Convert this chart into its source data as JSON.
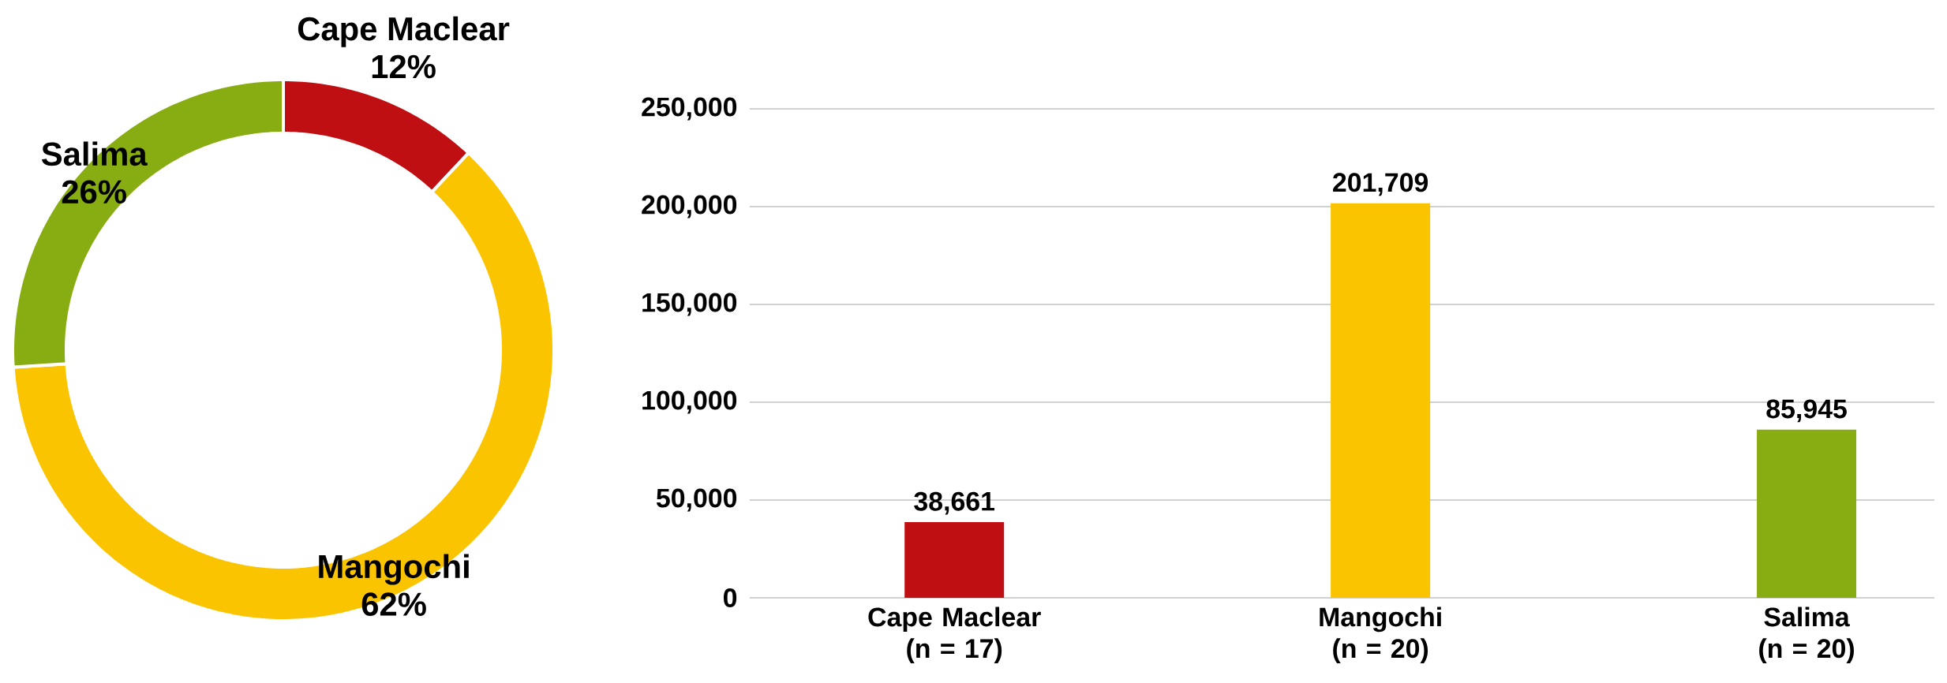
{
  "chart_data": [
    {
      "type": "donut",
      "categories": [
        "Cape Maclear",
        "Mangochi",
        "Salima"
      ],
      "values": [
        12,
        62,
        26
      ],
      "value_labels": [
        "12%",
        "62%",
        "26%"
      ],
      "colors": [
        "#c00f12",
        "#fbc400",
        "#88ad12"
      ]
    },
    {
      "type": "bar",
      "categories": [
        "Cape Maclear (n = 17)",
        "Mangochi (n = 20)",
        "Salima (n = 20)"
      ],
      "values": [
        38661,
        201709,
        85945
      ],
      "value_labels": [
        "38,661",
        "201,709",
        "85,945"
      ],
      "colors": [
        "#c00f12",
        "#fbc400",
        "#88ad12"
      ],
      "ylim": [
        0,
        250000
      ],
      "yticks": [
        0,
        {
          "value": 50000,
          "label": "50,000"
        },
        {
          "value": 100000,
          "label": "100,000"
        },
        {
          "value": 150000,
          "label": "150,000"
        },
        {
          "value": 200000,
          "label": "200,000"
        },
        {
          "value": 250000,
          "label": "250,000"
        }
      ],
      "grid": "y"
    }
  ]
}
